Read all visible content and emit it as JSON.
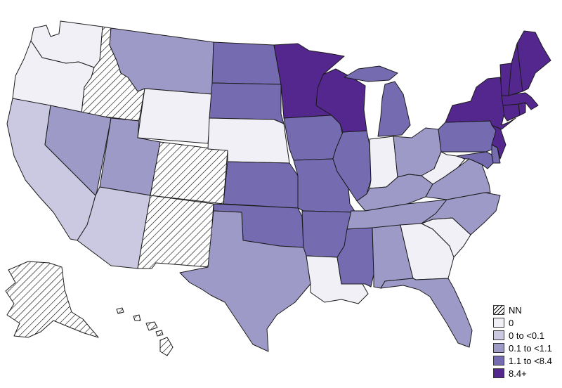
{
  "legend": [
    {
      "label": "NN",
      "pattern": "hatch",
      "color": "#ffffff"
    },
    {
      "label": "0",
      "color": "#f2f0f7"
    },
    {
      "label": "0 to <0.1",
      "color": "#cbc9e2"
    },
    {
      "label": "0.1 to <1.1",
      "color": "#9e9ac8"
    },
    {
      "label": "1.1 to <8.4",
      "color": "#756bb1"
    },
    {
      "label": "8.4+",
      "color": "#54278f"
    }
  ],
  "states": {
    "Washington": "0",
    "Oregon": "0",
    "Idaho": "NN",
    "Montana": "0.1 to <1.1",
    "Wyoming": "0",
    "California": "0 to <0.1",
    "Nevada": "0.1 to <1.1",
    "Utah": "0.1 to <1.1",
    "Colorado": "NN",
    "Arizona": "0 to <0.1",
    "New Mexico": "NN",
    "North Dakota": "1.1 to <8.4",
    "South Dakota": "1.1 to <8.4",
    "Nebraska": "0",
    "Kansas": "1.1 to <8.4",
    "Oklahoma": "1.1 to <8.4",
    "Texas": "0.1 to <1.1",
    "Minnesota": "8.4+",
    "Iowa": "1.1 to <8.4",
    "Missouri": "1.1 to <8.4",
    "Arkansas": "1.1 to <8.4",
    "Louisiana": "0",
    "Wisconsin": "8.4+",
    "Illinois": "1.1 to <8.4",
    "Michigan": "1.1 to <8.4",
    "Indiana": "0",
    "Ohio": "0.1 to <1.1",
    "Kentucky": "0.1 to <1.1",
    "Tennessee": "0.1 to <1.1",
    "Mississippi": "1.1 to <8.4",
    "Alabama": "0.1 to <1.1",
    "Georgia": "0",
    "Florida": "0.1 to <1.1",
    "South Carolina": "0",
    "North Carolina": "0.1 to <1.1",
    "Virginia": "0.1 to <1.1",
    "West Virginia": "0",
    "Pennsylvania": "1.1 to <8.4",
    "New York": "8.4+",
    "New Jersey": "8.4+",
    "Delaware": "1.1 to <8.4",
    "Maryland": "1.1 to <8.4",
    "Connecticut": "8.4+",
    "Rhode Island": "8.4+",
    "Massachusetts": "8.4+",
    "Vermont": "8.4+",
    "New Hampshire": "8.4+",
    "Maine": "8.4+",
    "Alaska": "NN",
    "Hawaii": "NN"
  }
}
